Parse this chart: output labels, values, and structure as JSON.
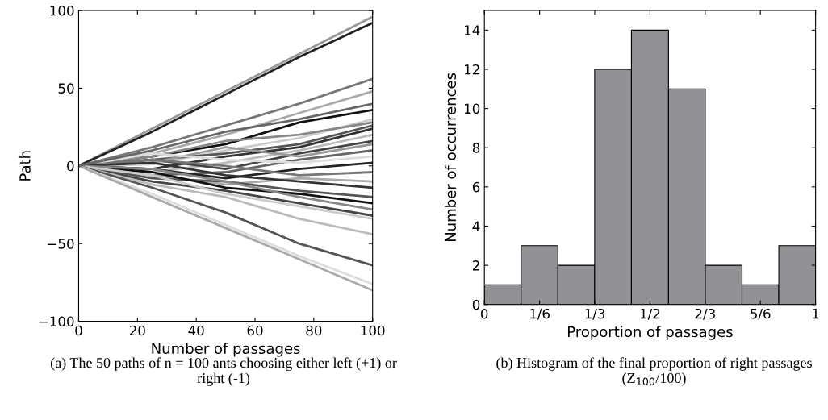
{
  "chart_data": [
    {
      "type": "line",
      "xlabel": "Number of passages",
      "ylabel": "Path",
      "x": [
        0,
        25,
        50,
        75,
        100
      ],
      "xlim": [
        0,
        100
      ],
      "ylim": [
        -100,
        100
      ],
      "xticks": [
        0,
        20,
        40,
        60,
        80,
        100
      ],
      "yticks": [
        {
          "value": -100,
          "label": "−100"
        },
        {
          "value": -50,
          "label": "−50"
        },
        0,
        50,
        100
      ],
      "grid": false,
      "line_style": "solid",
      "marker": "none",
      "annotations": [
        "(a) The 50 paths of n = 100 ants choosing either left (+1) or right (-1)"
      ],
      "series": [
        {
          "color": "#999999",
          "values": [
            0,
            24,
            48,
            72,
            96
          ]
        },
        {
          "color": "#222222",
          "values": [
            0,
            22,
            46,
            70,
            92
          ]
        },
        {
          "color": "#777777",
          "values": [
            0,
            12,
            26,
            40,
            56
          ]
        },
        {
          "color": "#aaaaaa",
          "values": [
            0,
            8,
            20,
            34,
            48
          ]
        },
        {
          "color": "#111111",
          "values": [
            0,
            6,
            14,
            28,
            36
          ]
        },
        {
          "color": "#cccccc",
          "values": [
            0,
            1,
            10,
            18,
            30
          ]
        },
        {
          "color": "#555555",
          "values": [
            0,
            4,
            8,
            14,
            26
          ]
        },
        {
          "color": "#333333",
          "values": [
            0,
            -2,
            6,
            12,
            24
          ]
        },
        {
          "color": "#888888",
          "values": [
            0,
            6,
            16,
            20,
            28
          ]
        },
        {
          "color": "#bbbbbb",
          "values": [
            0,
            -4,
            2,
            10,
            20
          ]
        },
        {
          "color": "#444444",
          "values": [
            0,
            4,
            -2,
            8,
            16
          ]
        },
        {
          "color": "#999999",
          "values": [
            0,
            2,
            12,
            6,
            14
          ]
        },
        {
          "color": "#666666",
          "values": [
            0,
            -6,
            -4,
            4,
            10
          ]
        },
        {
          "color": "#dddddd",
          "values": [
            0,
            8,
            4,
            2,
            6
          ]
        },
        {
          "color": "#222222",
          "values": [
            0,
            -2,
            -8,
            -2,
            2
          ]
        },
        {
          "color": "#777777",
          "values": [
            0,
            4,
            0,
            -6,
            -4
          ]
        },
        {
          "color": "#aaaaaa",
          "values": [
            0,
            -6,
            -12,
            -8,
            -10
          ]
        },
        {
          "color": "#333333",
          "values": [
            0,
            2,
            -6,
            -10,
            -14
          ]
        },
        {
          "color": "#555555",
          "values": [
            0,
            -8,
            -10,
            -16,
            -20
          ]
        },
        {
          "color": "#111111",
          "values": [
            0,
            -4,
            -14,
            -18,
            -24
          ]
        },
        {
          "color": "#888888",
          "values": [
            0,
            -2,
            -10,
            -20,
            -28
          ]
        },
        {
          "color": "#444444",
          "values": [
            0,
            -10,
            -16,
            -24,
            -32
          ]
        },
        {
          "color": "#cccccc",
          "values": [
            0,
            -6,
            -18,
            -26,
            -34
          ]
        },
        {
          "color": "#bbbbbb",
          "values": [
            0,
            -12,
            -20,
            -34,
            -44
          ]
        },
        {
          "color": "#555555",
          "values": [
            0,
            -14,
            -30,
            -50,
            -64
          ]
        },
        {
          "color": "#dddddd",
          "values": [
            0,
            -18,
            -38,
            -58,
            -76
          ]
        },
        {
          "color": "#aaaaaa",
          "values": [
            0,
            -20,
            -40,
            -60,
            -80
          ]
        },
        {
          "color": "#666666",
          "values": [
            0,
            10,
            22,
            30,
            40
          ]
        }
      ]
    },
    {
      "type": "histogram",
      "xlabel": "Proportion of passages",
      "ylabel": "Number of occurrences",
      "color": "#929296",
      "bins": [
        0,
        0.111,
        0.222,
        0.333,
        0.444,
        0.556,
        0.667,
        0.778,
        0.889,
        1
      ],
      "values": [
        1,
        3,
        2,
        12,
        14,
        11,
        2,
        1,
        3
      ],
      "xlim": [
        0,
        1
      ],
      "ylim": [
        0,
        15
      ],
      "grid": false,
      "xticks": [
        0,
        {
          "value": 0.1667,
          "label": "1/6"
        },
        {
          "value": 0.3333,
          "label": "1/3"
        },
        {
          "value": 0.5,
          "label": "1/2"
        },
        {
          "value": 0.6667,
          "label": "2/3"
        },
        {
          "value": 0.8333,
          "label": "5/6"
        },
        1
      ],
      "yticks": [
        0,
        2,
        4,
        6,
        8,
        10,
        12,
        14
      ],
      "annotations": [
        "(b) Histogram of the final proportion of right passages (Z$_{100}$/100)"
      ]
    }
  ]
}
